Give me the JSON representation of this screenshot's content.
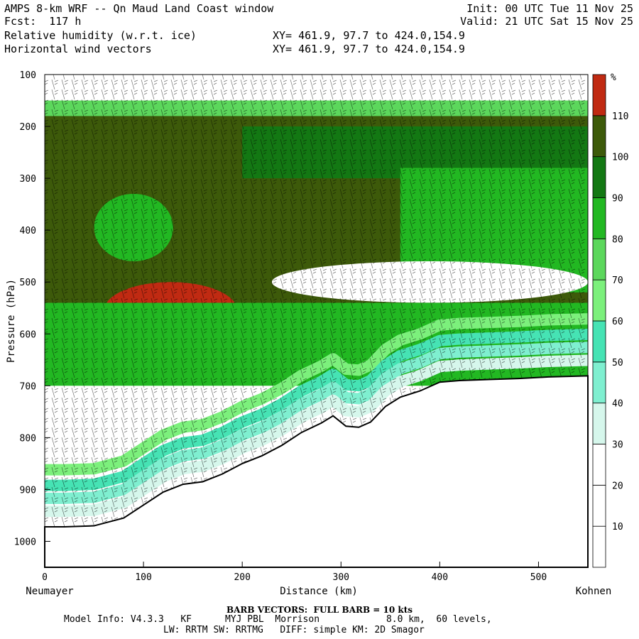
{
  "header": {
    "title": "AMPS 8-km WRF -- Qn Maud Land Coast window",
    "forecast": "Fcst:  117 h",
    "field1": "Relative humidity (w.r.t. ice)",
    "field2": "Horizontal wind vectors",
    "init": "Init: 00 UTC Tue 11 Nov 25",
    "valid": "Valid: 21 UTC Sat 15 Nov 25",
    "xy1": "XY= 461.9, 97.7 to 424.0,154.9",
    "xy2": "XY= 461.9, 97.7 to 424.0,154.9"
  },
  "chart_data": {
    "type": "heatmap",
    "title": "Relative humidity (w.r.t. ice) cross-section with horizontal wind barbs",
    "xlabel": "Distance (km)",
    "ylabel": "Pressure (hPa)",
    "xlim": [
      0,
      550
    ],
    "ylim": [
      100,
      1050
    ],
    "x_ticks": [
      0,
      100,
      200,
      300,
      400,
      500
    ],
    "y_ticks": [
      100,
      200,
      300,
      400,
      500,
      600,
      700,
      800,
      900,
      1000
    ],
    "x_start_label": "Neumayer",
    "x_end_label": "Kohnen",
    "colorbar": {
      "unit": "%",
      "levels": [
        10,
        20,
        30,
        40,
        50,
        60,
        70,
        80,
        90,
        100,
        110
      ],
      "colors": [
        "#ffffff",
        "#ffffff",
        "#ffffff",
        "#d6f7ec",
        "#7fefd0",
        "#46e3b4",
        "#7cf07c",
        "#5cd75c",
        "#22b822",
        "#137813",
        "#3d5a0a",
        "#c02a12"
      ]
    },
    "terrain_pressure": [
      {
        "x": 0,
        "p": 972
      },
      {
        "x": 20,
        "p": 972
      },
      {
        "x": 50,
        "p": 970
      },
      {
        "x": 80,
        "p": 955
      },
      {
        "x": 100,
        "p": 930
      },
      {
        "x": 120,
        "p": 905
      },
      {
        "x": 140,
        "p": 890
      },
      {
        "x": 160,
        "p": 885
      },
      {
        "x": 180,
        "p": 870
      },
      {
        "x": 200,
        "p": 850
      },
      {
        "x": 220,
        "p": 835
      },
      {
        "x": 240,
        "p": 815
      },
      {
        "x": 260,
        "p": 790
      },
      {
        "x": 280,
        "p": 772
      },
      {
        "x": 292,
        "p": 758
      },
      {
        "x": 305,
        "p": 778
      },
      {
        "x": 318,
        "p": 780
      },
      {
        "x": 330,
        "p": 770
      },
      {
        "x": 345,
        "p": 740
      },
      {
        "x": 360,
        "p": 722
      },
      {
        "x": 380,
        "p": 710
      },
      {
        "x": 400,
        "p": 693
      },
      {
        "x": 420,
        "p": 690
      },
      {
        "x": 450,
        "p": 688
      },
      {
        "x": 480,
        "p": 686
      },
      {
        "x": 510,
        "p": 683
      },
      {
        "x": 550,
        "p": 681
      }
    ],
    "rh_regions": [
      {
        "level": "lt30",
        "x": [
          0,
          550
        ],
        "p": [
          100,
          175
        ]
      },
      {
        "level": "70-80",
        "x": [
          0,
          550
        ],
        "p": [
          150,
          185
        ]
      },
      {
        "level": "100-110",
        "x": [
          0,
          550
        ],
        "p": [
          180,
          560
        ]
      },
      {
        "level": "90-100",
        "x": [
          200,
          550
        ],
        "p": [
          200,
          300
        ]
      },
      {
        "level": "80-90",
        "x": [
          360,
          550
        ],
        "p": [
          280,
          520
        ]
      },
      {
        "level": "lt30",
        "x": [
          230,
          550
        ],
        "p": [
          460,
          540
        ]
      },
      {
        "level": "80-90",
        "x": [
          50,
          130
        ],
        "p": [
          330,
          460
        ]
      },
      {
        "level": "gt110",
        "x": [
          60,
          195
        ],
        "p": [
          500,
          610
        ]
      },
      {
        "level": "80-90",
        "x": [
          0,
          550
        ],
        "p": [
          540,
          700
        ]
      },
      {
        "level": "lt30",
        "x": [
          60,
          330
        ],
        "p": [
          700,
          900
        ]
      }
    ]
  },
  "footer": {
    "barb": "BARB VECTORS:  FULL BARB = 10 kts",
    "model": "Model Info: V4.3.3   KF      MYJ PBL  Morrison            8.0 km,  60 levels,",
    "physics": "LW: RRTM SW: RRTMG   DIFF: simple KM: 2D Smagor"
  }
}
